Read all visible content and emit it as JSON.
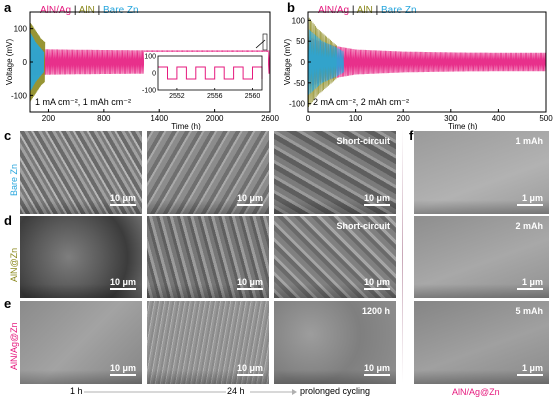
{
  "panels": {
    "a": "a",
    "b": "b",
    "c": "c",
    "d": "d",
    "e": "e",
    "f": "f"
  },
  "legend": {
    "item1": "AlN/Ag",
    "sep1": " | ",
    "item2": "AlN",
    "sep2": " | ",
    "item3": "Bare Zn",
    "color1": "#e6197e",
    "color2": "#8c8a1e",
    "color3": "#27a6dd"
  },
  "chart_data": [
    {
      "type": "line",
      "panel": "a",
      "xlabel": "Time (h)",
      "ylabel": "Voltage (mV)",
      "xticks": [
        "200",
        "800",
        "1400",
        "2000",
        "2600"
      ],
      "yticks": [
        "-100",
        "0",
        "100"
      ],
      "xlim": [
        0,
        2600
      ],
      "ylim": [
        -150,
        150
      ],
      "condition": "1 mA cm⁻², 1 mAh cm⁻²",
      "series": [
        {
          "name": "AlN/Ag",
          "color": "#e6197e",
          "x": [
            0,
            200,
            800,
            1400,
            2000,
            2600
          ],
          "amplitude": [
            40,
            38,
            36,
            35,
            35,
            35
          ]
        },
        {
          "name": "AlN",
          "color": "#8c8a1e",
          "x": [
            0,
            60,
            120,
            160
          ],
          "amplitude": [
            120,
            95,
            70,
            60
          ]
        },
        {
          "name": "Bare Zn",
          "color": "#27a6dd",
          "x": [
            0,
            60,
            120,
            150
          ],
          "amplitude": [
            90,
            60,
            40,
            30
          ]
        }
      ],
      "inset": {
        "xticks": [
          "2552",
          "2556",
          "2560"
        ],
        "yticks": [
          "-100",
          "0",
          "100"
        ],
        "xlim": [
          2550,
          2561
        ],
        "ylim": [
          -100,
          100
        ],
        "amplitude": 35
      }
    },
    {
      "type": "line",
      "panel": "b",
      "xlabel": "Time (h)",
      "ylabel": "Voltage (mV)",
      "xticks": [
        "0",
        "100",
        "200",
        "300",
        "400",
        "500"
      ],
      "yticks": [
        "-100",
        "-50",
        "0",
        "50",
        "100"
      ],
      "xlim": [
        0,
        500
      ],
      "ylim": [
        -120,
        120
      ],
      "condition": "2 mA cm⁻², 2 mAh cm⁻²",
      "series": [
        {
          "name": "AlN/Ag",
          "color": "#e6197e",
          "x": [
            0,
            50,
            100,
            200,
            300,
            400,
            500
          ],
          "amplitude": [
            60,
            40,
            30,
            25,
            23,
            22,
            22
          ]
        },
        {
          "name": "AlN",
          "color": "#8c8a1e",
          "x": [
            0,
            20,
            40,
            60
          ],
          "amplitude": [
            110,
            80,
            60,
            40
          ]
        },
        {
          "name": "Bare Zn",
          "color": "#27a6dd",
          "x": [
            0,
            30,
            60,
            75
          ],
          "amplitude": [
            80,
            50,
            35,
            25
          ]
        }
      ]
    }
  ],
  "sem": {
    "row_labels": {
      "c": "Bare Zn",
      "d": "AlN@Zn",
      "e": "AlN/Ag@Zn",
      "f": "AlN/Ag@Zn"
    },
    "scale_10": "10 μm",
    "scale_1": "1 μm",
    "notes": {
      "short1": "Short-circuit",
      "short2": "Short-circuit",
      "h1200": "1200 h",
      "f1": "1 mAh",
      "f2": "2 mAh",
      "f3": "5 mAh"
    },
    "timeline": {
      "t1": "1 h",
      "t2": "24 h",
      "t3": "prolonged cycling"
    },
    "row_colors": {
      "c": "#27a6dd",
      "d": "#8c8a1e",
      "e": "#e6197e"
    }
  }
}
